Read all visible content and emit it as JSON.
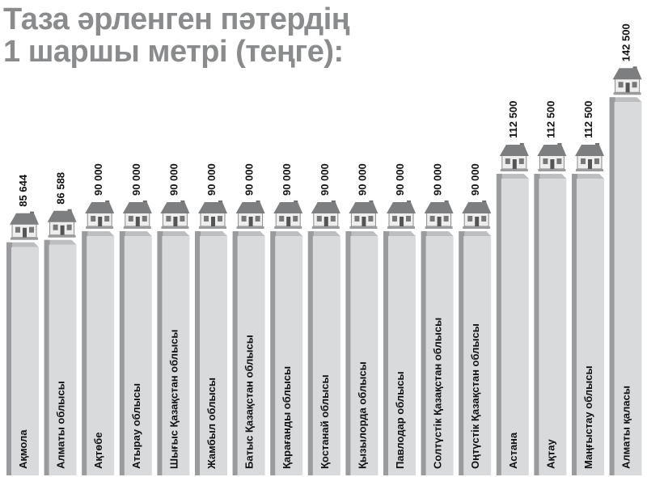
{
  "chart_data": {
    "type": "bar",
    "title": [
      "Таза әрленген пәтердің",
      "1 шаршы метрі (теңге):"
    ],
    "xlabel": "",
    "ylabel": "",
    "grid": false,
    "categories": [
      "Ақмола",
      "Алматы облысы",
      "Ақтөбе",
      "Атырау облысы",
      "Шығыс Қазақстан облысы",
      "Жамбыл облысы",
      "Батыс Қазақстан облысы",
      "Қарағанды облысы",
      "Қостанай облысы",
      "Қызылорда облысы",
      "Павлодар облысы",
      "Солтүстік Қазақстан облысы",
      "Оңтүстік Қазақстан облысы",
      "Астана",
      "Ақтау",
      "Маңғыстау облысы",
      "Алматы қаласы"
    ],
    "values": [
      85644,
      86588,
      90000,
      90000,
      90000,
      90000,
      90000,
      90000,
      90000,
      90000,
      90000,
      90000,
      90000,
      112500,
      112500,
      112500,
      142500
    ],
    "value_labels": [
      "85 644",
      "86 588",
      "90 000",
      "90 000",
      "90 000",
      "90 000",
      "90 000",
      "90 000",
      "90 000",
      "90 000",
      "90 000",
      "90 000",
      "90 000",
      "112 500",
      "112 500",
      "112 500",
      "142 500"
    ],
    "colors": {
      "bar_front": "#d9dadc",
      "bar_side": "#9a9b9d",
      "title": "#8a8b8d",
      "house_roof": "#7d7e80",
      "house_wall": "#eeeeee"
    },
    "icon": "house-icon"
  }
}
